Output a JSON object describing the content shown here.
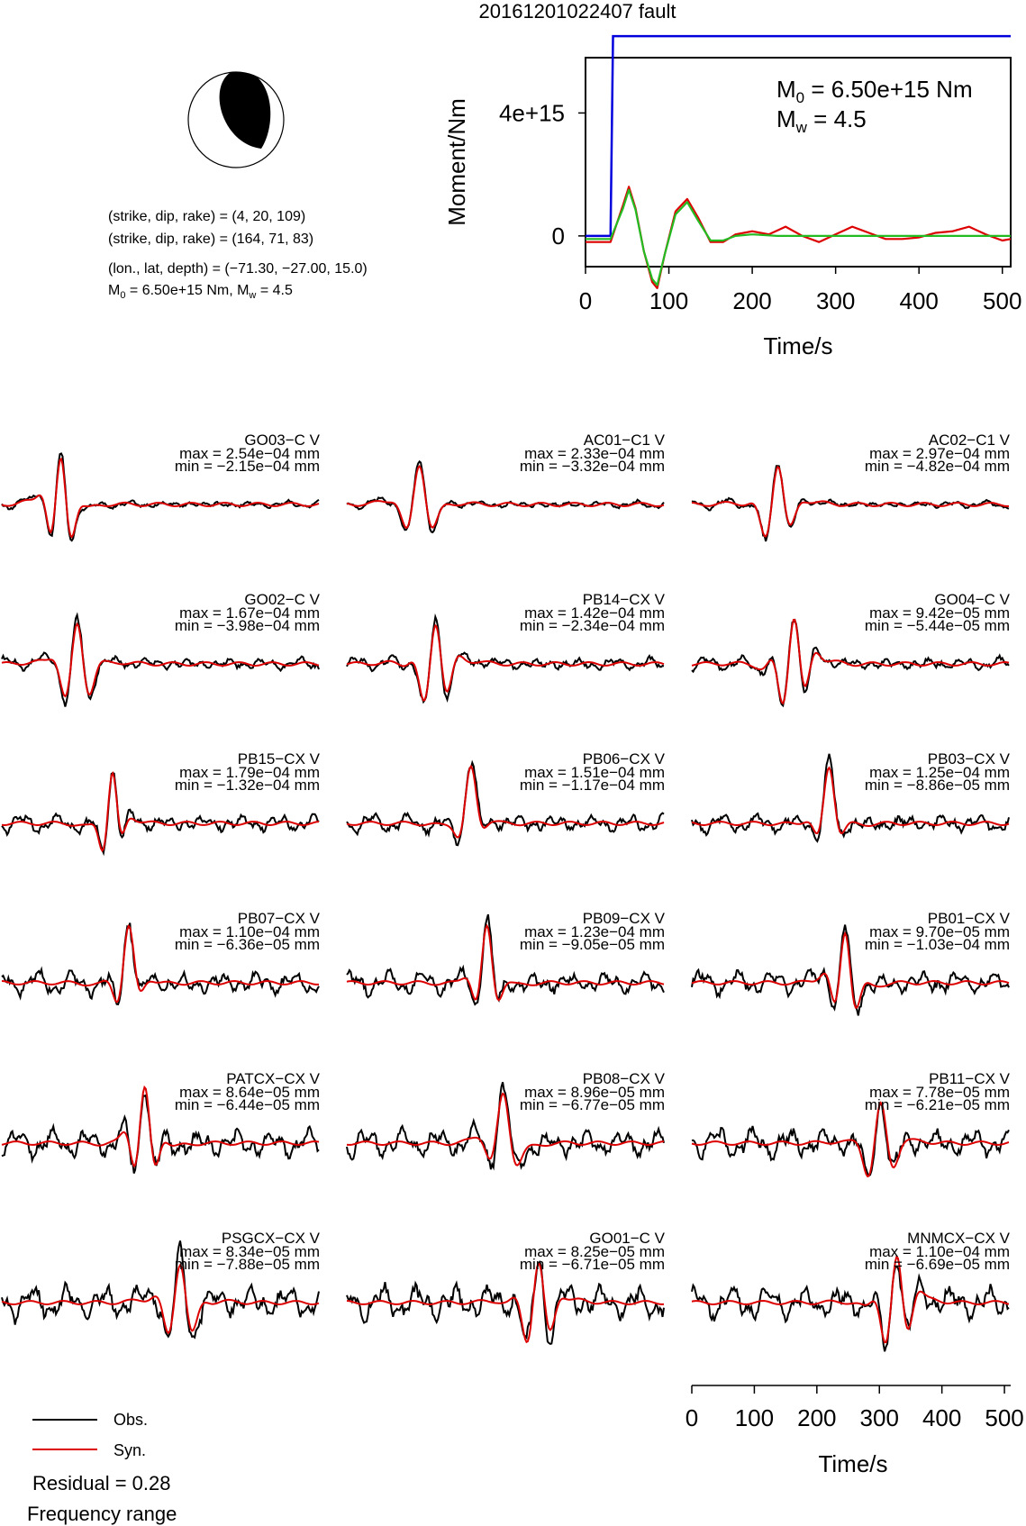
{
  "title": "20161201022407 fault",
  "mechanism": {
    "line1": "(strike, dip, rake) = (4, 20, 109)",
    "line2": "(strike, dip, rake) = (164, 71, 83)",
    "line3": "(lon., lat, depth) = (−71.30, −27.00, 15.0)",
    "m0_prefix": "M",
    "m0_sub": "0",
    "m0_value": " = 6.50e+15 Nm, M",
    "mw_sub": "w",
    "mw_value": " = 4.5"
  },
  "legend": {
    "obs_label": "Obs.",
    "syn_label": "Syn.",
    "residual": "Residual = 0.28",
    "frequency": "Frequency range"
  },
  "colors": {
    "observed": "#000000",
    "synthetic": "#dd0000",
    "moment": "#0000dd",
    "stf": "#22bb22"
  },
  "chart_data": [
    {
      "type": "line",
      "title": "",
      "xlabel": "Time/s",
      "ylabel": "Moment/Nm",
      "xlim": [
        0,
        510
      ],
      "ylim": [
        -1000000000000000.0,
        5800000000000000.0
      ],
      "xticks": [
        "0",
        "100",
        "200",
        "300",
        "400",
        "500"
      ],
      "yticks": [
        {
          "value": 0,
          "label": "0"
        },
        {
          "value": 4000000000000000.0,
          "label": "4e+15"
        }
      ],
      "annotation": {
        "m0_prefix": "M",
        "m0_sub": "0",
        "m0_value": " = 6.50e+15 Nm",
        "mw_prefix": "M",
        "mw_sub": "w",
        "mw_value": " = 4.5"
      },
      "moment_step": {
        "onset_s": 30,
        "rise_end_s": 33,
        "moment_nm": 6500000000000000.0
      },
      "series": [
        {
          "x": [
            0,
            30,
            45,
            52,
            60,
            70,
            80,
            86,
            95,
            108,
            122,
            135,
            150,
            165,
            180,
            200,
            220,
            240,
            260,
            280,
            300,
            320,
            340,
            360,
            380,
            400,
            420,
            440,
            460,
            480,
            500,
            510
          ],
          "y": [
            -200000000000000.0,
            -200000000000000.0,
            1000000000000000.0,
            1600000000000000.0,
            900000000000000.0,
            -500000000000000.0,
            -1500000000000000.0,
            -1700000000000000.0,
            -600000000000000.0,
            800000000000000.0,
            1200000000000000.0,
            600000000000000.0,
            -200000000000000.0,
            -200000000000000.0,
            50000000000000.0,
            150000000000000.0,
            50000000000000.0,
            300000000000000.0,
            0.0,
            -200000000000000.0,
            50000000000000.0,
            300000000000000.0,
            100000000000000.0,
            -100000000000000.0,
            -100000000000000.0,
            -50000000000000.0,
            100000000000000.0,
            150000000000000.0,
            300000000000000.0,
            50000000000000.0,
            -150000000000000.0,
            -100000000000000.0
          ]
        },
        {
          "x": [
            0,
            30,
            45,
            52,
            60,
            70,
            80,
            86,
            95,
            108,
            122,
            135,
            150,
            165,
            180,
            200,
            230,
            260,
            300,
            350,
            400,
            450,
            510
          ],
          "y": [
            -100000000000000.0,
            -100000000000000.0,
            900000000000000.0,
            1500000000000000.0,
            850000000000000.0,
            -500000000000000.0,
            -1400000000000000.0,
            -1600000000000000.0,
            -600000000000000.0,
            700000000000000.0,
            1100000000000000.0,
            500000000000000.0,
            -150000000000000.0,
            -150000000000000.0,
            0.0,
            50000000000000.0,
            0.0,
            0.0,
            0.0,
            0.0,
            0.0,
            0.0,
            0.0
          ]
        }
      ]
    },
    {
      "type": "line",
      "title": "",
      "xlabel": "Time/s",
      "xlim": [
        0,
        510
      ],
      "xticks": [
        "0",
        "100",
        "200",
        "300",
        "400",
        "500"
      ],
      "series_labels": [
        "Obs.",
        "Syn."
      ],
      "stations": [
        {
          "name": "GO03−C V",
          "max": "max = 2.54e−04 mm",
          "min": "min = −2.15e−04 mm",
          "col": 0,
          "row": 0
        },
        {
          "name": "AC01−C1 V",
          "max": "max = 2.33e−04 mm",
          "min": "min = −3.32e−04 mm",
          "col": 1,
          "row": 0
        },
        {
          "name": "AC02−C1 V",
          "max": "max = 2.97e−04 mm",
          "min": "min = −4.82e−04 mm",
          "col": 2,
          "row": 0
        },
        {
          "name": "GO02−C V",
          "max": "max = 1.67e−04 mm",
          "min": "min = −3.98e−04 mm",
          "col": 0,
          "row": 1
        },
        {
          "name": "PB14−CX V",
          "max": "max = 1.42e−04 mm",
          "min": "min = −2.34e−04 mm",
          "col": 1,
          "row": 1
        },
        {
          "name": "GO04−C V",
          "max": "max = 9.42e−05 mm",
          "min": "min = −5.44e−05 mm",
          "col": 2,
          "row": 1
        },
        {
          "name": "PB15−CX V",
          "max": "max = 1.79e−04 mm",
          "min": "min = −1.32e−04 mm",
          "col": 0,
          "row": 2
        },
        {
          "name": "PB06−CX V",
          "max": "max = 1.51e−04 mm",
          "min": "min = −1.17e−04 mm",
          "col": 1,
          "row": 2
        },
        {
          "name": "PB03−CX V",
          "max": "max = 1.25e−04 mm",
          "min": "min = −8.86e−05 mm",
          "col": 2,
          "row": 2
        },
        {
          "name": "PB07−CX V",
          "max": "max = 1.10e−04 mm",
          "min": "min = −6.36e−05 mm",
          "col": 0,
          "row": 3
        },
        {
          "name": "PB09−CX V",
          "max": "max = 1.23e−04 mm",
          "min": "min = −9.05e−05 mm",
          "col": 1,
          "row": 3
        },
        {
          "name": "PB01−CX V",
          "max": "max = 9.70e−05 mm",
          "min": "min = −1.03e−04 mm",
          "col": 2,
          "row": 3
        },
        {
          "name": "PATCX−CX V",
          "max": "max = 8.64e−05 mm",
          "min": "min = −6.44e−05 mm",
          "col": 0,
          "row": 4
        },
        {
          "name": "PB08−CX V",
          "max": "max = 8.96e−05 mm",
          "min": "min = −6.77e−05 mm",
          "col": 1,
          "row": 4
        },
        {
          "name": "PB11−CX V",
          "max": "max = 7.78e−05 mm",
          "min": "min = −6.21e−05 mm",
          "col": 2,
          "row": 4
        },
        {
          "name": "PSGCX−CX V",
          "max": "max = 8.34e−05 mm",
          "min": "min = −7.88e−05 mm",
          "col": 0,
          "row": 5
        },
        {
          "name": "GO01−C V",
          "max": "max = 8.25e−05 mm",
          "min": "min = −6.71e−05 mm",
          "col": 1,
          "row": 5
        },
        {
          "name": "MNMCX−CX V",
          "max": "max = 1.10e−04 mm",
          "min": "min = −6.69e−05 mm",
          "col": 2,
          "row": 5
        }
      ]
    }
  ]
}
